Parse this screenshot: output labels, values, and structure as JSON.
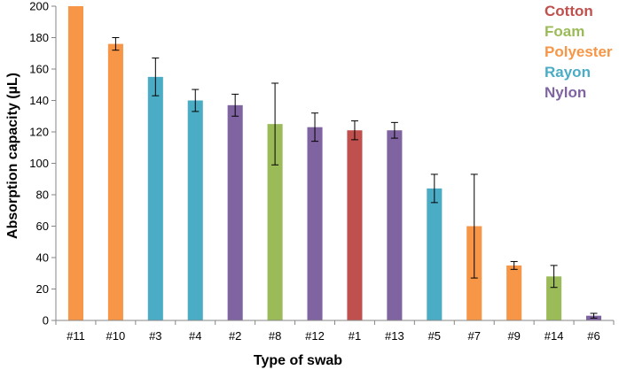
{
  "chart_data": {
    "type": "bar",
    "title": "",
    "xlabel": "Type of swab",
    "ylabel": "Absorption capacity (µL)",
    "ylim": [
      0,
      200
    ],
    "yticks": [
      0,
      20,
      40,
      60,
      80,
      100,
      120,
      140,
      160,
      180,
      200
    ],
    "grid": false,
    "legend_position": "top-right",
    "categories": [
      "#11",
      "#10",
      "#3",
      "#4",
      "#2",
      "#8",
      "#12",
      "#1",
      "#13",
      "#5",
      "#7",
      "#9",
      "#14",
      "#6"
    ],
    "values": [
      200,
      176,
      155,
      140,
      137,
      125,
      123,
      121,
      121,
      84,
      60,
      35,
      28,
      3
    ],
    "errors": [
      0,
      4,
      12,
      7,
      7,
      26,
      9,
      6,
      5,
      9,
      33,
      2.5,
      7,
      1.5
    ],
    "material": [
      "Polyester",
      "Polyester",
      "Rayon",
      "Rayon",
      "Nylon",
      "Foam",
      "Nylon",
      "Cotton",
      "Nylon",
      "Rayon",
      "Polyester",
      "Polyester",
      "Foam",
      "Nylon"
    ],
    "legend": [
      {
        "name": "Cotton",
        "color": "#c0504d"
      },
      {
        "name": "Foam",
        "color": "#9bbb59"
      },
      {
        "name": "Polyester",
        "color": "#f79646"
      },
      {
        "name": "Rayon",
        "color": "#4bacc6"
      },
      {
        "name": "Nylon",
        "color": "#8064a2"
      }
    ]
  }
}
